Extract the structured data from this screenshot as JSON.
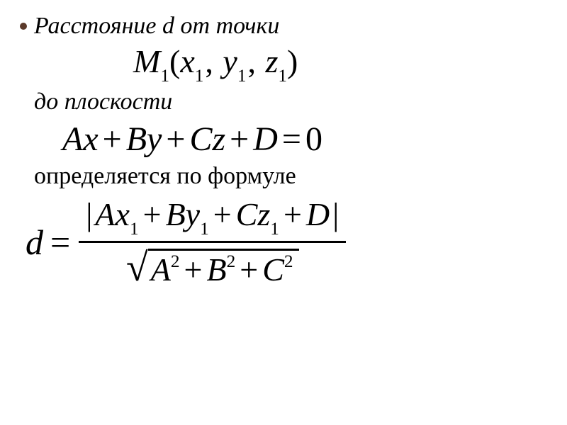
{
  "text": {
    "line1": "Расстояние d от точки",
    "line2": "до плоскости",
    "line3": "определяется по формуле"
  },
  "math": {
    "point": {
      "M": "M",
      "sub1": "1",
      "open": "(",
      "x": "x",
      "xs": "1",
      "c1": ",",
      "y": "y",
      "ys": "1",
      "c2": ",",
      "z": "z",
      "zs": "1",
      "close": ")"
    },
    "plane": {
      "A": "A",
      "x": "x",
      "p1": "+",
      "B": "B",
      "y": "y",
      "p2": "+",
      "C": "C",
      "z": "z",
      "p3": "+",
      "D": "D",
      "eq": "=",
      "zero": "0"
    },
    "distance": {
      "d": "d",
      "eq": "=",
      "numer": {
        "absL": "|",
        "A": "A",
        "x": "x",
        "xs": "1",
        "p1": "+",
        "B": "B",
        "y": "y",
        "ys": "1",
        "p2": "+",
        "C": "C",
        "z": "z",
        "zs": "1",
        "p3": "+",
        "D": "D",
        "absR": "|"
      },
      "denom": {
        "A": "A",
        "Ae": "2",
        "p1": "+",
        "B": "B",
        "Be": "2",
        "p2": "+",
        "C": "C",
        "Ce": "2"
      }
    }
  },
  "style": {
    "background": "#ffffff",
    "text_color": "#000000",
    "bullet_color": "#5b3a2a",
    "body_font": "Times New Roman",
    "body_italic_size_pt": 26,
    "math_size_pt": 36,
    "formula_size_pt": 38
  }
}
